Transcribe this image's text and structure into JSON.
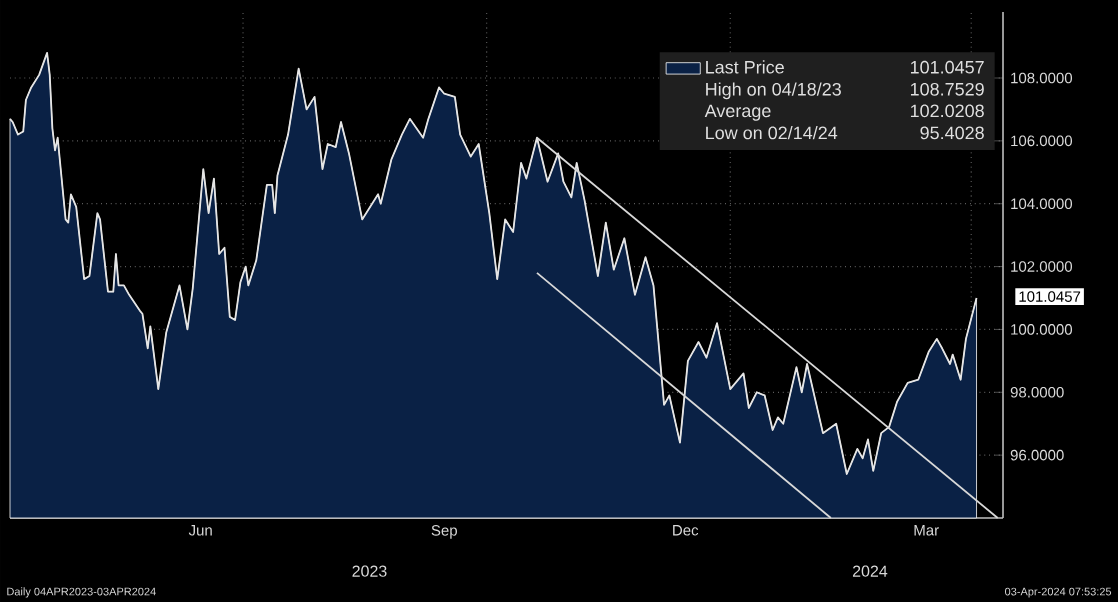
{
  "chart_data": {
    "type": "area",
    "x": [
      "2023-04-04",
      "2023-04-05",
      "2023-04-07",
      "2023-04-09",
      "2023-04-10",
      "2023-04-12",
      "2023-04-15",
      "2023-04-18",
      "2023-04-19",
      "2023-04-20",
      "2023-04-21",
      "2023-04-22",
      "2023-04-25",
      "2023-04-26",
      "2023-04-27",
      "2023-04-29",
      "2023-05-02",
      "2023-05-04",
      "2023-05-07",
      "2023-05-08",
      "2023-05-11",
      "2023-05-13",
      "2023-05-14",
      "2023-05-15",
      "2023-05-17",
      "2023-05-19",
      "2023-05-23",
      "2023-05-24",
      "2023-05-26",
      "2023-05-27",
      "2023-05-30",
      "2023-06-02",
      "2023-06-07",
      "2023-06-10",
      "2023-06-12",
      "2023-06-16",
      "2023-06-18",
      "2023-06-20",
      "2023-06-22",
      "2023-06-24",
      "2023-06-26",
      "2023-06-28",
      "2023-06-30",
      "2023-07-02",
      "2023-07-03",
      "2023-07-06",
      "2023-07-10",
      "2023-07-12",
      "2023-07-13",
      "2023-07-14",
      "2023-07-18",
      "2023-07-22",
      "2023-07-25",
      "2023-07-28",
      "2023-07-31",
      "2023-08-02",
      "2023-08-05",
      "2023-08-07",
      "2023-08-10",
      "2023-08-15",
      "2023-08-21",
      "2023-08-22",
      "2023-08-26",
      "2023-08-30",
      "2023-09-02",
      "2023-09-07",
      "2023-09-09",
      "2023-09-13",
      "2023-09-15",
      "2023-09-19",
      "2023-09-21",
      "2023-09-25",
      "2023-09-28",
      "2023-10-02",
      "2023-10-05",
      "2023-10-08",
      "2023-10-11",
      "2023-10-14",
      "2023-10-16",
      "2023-10-20",
      "2023-10-24",
      "2023-10-28",
      "2023-10-30",
      "2023-11-02",
      "2023-11-04",
      "2023-11-07",
      "2023-11-12",
      "2023-11-15",
      "2023-11-18",
      "2023-11-22",
      "2023-11-26",
      "2023-11-30",
      "2023-12-03",
      "2023-12-07",
      "2023-12-09",
      "2023-12-13",
      "2023-12-16",
      "2023-12-20",
      "2023-12-23",
      "2023-12-27",
      "2024-01-01",
      "2024-01-06",
      "2024-01-08",
      "2024-01-11",
      "2024-01-14",
      "2024-01-17",
      "2024-01-19",
      "2024-01-21",
      "2024-01-26",
      "2024-01-28",
      "2024-01-30",
      "2024-02-05",
      "2024-02-10",
      "2024-02-14",
      "2024-02-18",
      "2024-02-20",
      "2024-02-22",
      "2024-02-24",
      "2024-02-27",
      "2024-03-01",
      "2024-03-04",
      "2024-03-08",
      "2024-03-12",
      "2024-03-16",
      "2024-03-19",
      "2024-03-21",
      "2024-03-24",
      "2024-03-25",
      "2024-03-28",
      "2024-03-30",
      "2024-04-03"
    ],
    "series": [
      {
        "name": "Last Price",
        "color": "#0a2145",
        "values": [
          106.7,
          106.6,
          106.2,
          106.3,
          107.3,
          107.7,
          108.1,
          108.8,
          108.1,
          106.4,
          105.7,
          106.1,
          103.5,
          103.4,
          104.3,
          103.9,
          101.6,
          101.7,
          103.7,
          103.5,
          101.2,
          101.2,
          102.4,
          101.4,
          101.4,
          101.1,
          100.6,
          100.5,
          99.4,
          100.1,
          98.1,
          99.9,
          101.4,
          100.0,
          101.3,
          105.1,
          103.7,
          104.8,
          102.4,
          102.6,
          100.4,
          100.3,
          101.5,
          102.0,
          101.4,
          102.2,
          104.6,
          104.6,
          103.7,
          104.9,
          106.2,
          108.3,
          107.0,
          107.4,
          105.1,
          105.9,
          105.8,
          106.6,
          105.6,
          103.5,
          104.3,
          104.0,
          105.4,
          106.2,
          106.7,
          106.1,
          106.7,
          107.7,
          107.5,
          107.4,
          106.2,
          105.5,
          105.9,
          103.7,
          101.6,
          103.5,
          103.1,
          105.3,
          104.8,
          106.1,
          104.7,
          105.6,
          104.7,
          104.2,
          105.3,
          104.1,
          101.7,
          103.4,
          101.9,
          102.9,
          101.1,
          102.3,
          101.4,
          97.6,
          97.9,
          96.4,
          99.0,
          99.6,
          99.1,
          100.2,
          98.1,
          98.6,
          97.5,
          98.0,
          97.9,
          96.8,
          97.2,
          97.0,
          98.8,
          98.0,
          98.9,
          96.7,
          97.0,
          95.4,
          96.2,
          95.9,
          96.5,
          95.5,
          96.7,
          96.9,
          97.7,
          98.3,
          98.4,
          99.3,
          99.7,
          99.4,
          98.9,
          99.2,
          98.4,
          99.7,
          101.0
        ]
      },
      {
        "type": "line",
        "color": "#d9d9d9",
        "x": [
          "2023-10-20",
          "2024-04-11"
        ],
        "values": [
          106.1,
          94.0
        ]
      },
      {
        "type": "line",
        "color": "#d9d9d9",
        "x": [
          "2023-10-20",
          "2024-02-08"
        ],
        "values": [
          101.8,
          94.0
        ]
      }
    ],
    "xlim": [
      "2023-04-04",
      "2024-04-13"
    ],
    "xticks": [
      {
        "value": "2023-06-15",
        "label": "Jun"
      },
      {
        "value": "2023-07-01",
        "label": null
      },
      {
        "value": "2023-09-15",
        "label": "Sep"
      },
      {
        "value": "2023-10-01",
        "label": null
      },
      {
        "value": "2023-12-15",
        "label": "Dec"
      },
      {
        "value": "2024-01-01",
        "label": null
      },
      {
        "value": "2024-03-15",
        "label": "Mar"
      },
      {
        "value": "2024-04-01",
        "label": null
      }
    ],
    "ylim": [
      94.0,
      110.1
    ],
    "yticks": [
      {
        "value": 96,
        "label": "96.0000"
      },
      {
        "value": 98,
        "label": "98.0000"
      },
      {
        "value": 100,
        "label": "100.0000"
      },
      {
        "value": 102,
        "label": "102.0000"
      },
      {
        "value": 104,
        "label": "104.0000"
      },
      {
        "value": 106,
        "label": "106.0000"
      },
      {
        "value": 108,
        "label": "108.0000"
      }
    ],
    "grid": true,
    "legend": "top right",
    "marker": "none",
    "line_style": "solid",
    "annotations": [
      "101.0457",
      "High on 04/18/23",
      "108.7529",
      "Average",
      "102.0208",
      "Low on 02/14/24",
      "95.4028",
      {
        "text": "101.0457",
        "x": "2024-04-03",
        "y": 101.0457
      },
      "2023",
      "2024",
      "Daily 04APR2023-03APR2024",
      "03-Apr-2024 07:53:25"
    ]
  }
}
